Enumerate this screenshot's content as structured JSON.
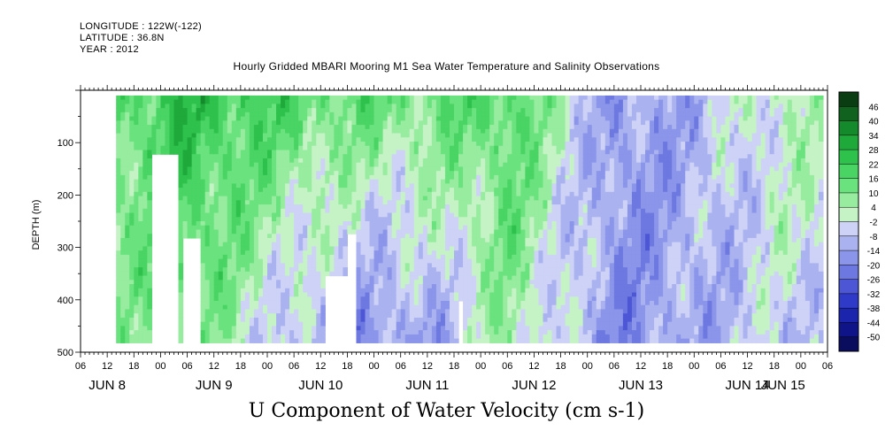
{
  "header": {
    "longitude": "LONGITUDE : 122W(-122)",
    "latitude": "LATITUDE : 36.8N",
    "year": "YEAR : 2012",
    "title": "Hourly Gridded MBARI Mooring M1 Sea Water Temperature and Salinity Observations"
  },
  "chart_data": {
    "type": "heatmap",
    "title": "Hourly Gridded MBARI Mooring M1 Sea Water Temperature and Salinity Observations",
    "variable_title": "U Component of Water Velocity (cm s-1)",
    "ylabel": "DEPTH (m)",
    "y_reversed": true,
    "ylim": [
      500,
      0
    ],
    "y_ticks": [
      100,
      200,
      300,
      400,
      500
    ],
    "x_hours": [
      "06",
      "12",
      "18",
      "00",
      "06",
      "12",
      "18",
      "00",
      "06",
      "12",
      "18",
      "00",
      "06",
      "12",
      "18",
      "00",
      "06",
      "12",
      "18",
      "00",
      "06",
      "12",
      "18",
      "00",
      "06",
      "12",
      "18",
      "00",
      "06"
    ],
    "x_days": [
      "JUN 8",
      "JUN 9",
      "JUN 10",
      "JUN 11",
      "JUN 12",
      "JUN 13",
      "JUN 14",
      "JUN 15"
    ],
    "x_range": [
      "2012-06-08 06:00",
      "2012-06-15 06:00"
    ],
    "data_range": {
      "x_start": "2012-06-08 14:00",
      "x_end": "2012-06-15 05:00",
      "depth_top": 10,
      "depth_bottom": 480
    },
    "colorbar": {
      "levels": [
        "46",
        "40",
        "34",
        "28",
        "22",
        "16",
        "10",
        "4",
        "-2",
        "-8",
        "-14",
        "-20",
        "-26",
        "-32",
        "-38",
        "-44",
        "-50"
      ],
      "colors": [
        "#0b3d12",
        "#11621f",
        "#158a2c",
        "#1ea93a",
        "#2ec14c",
        "#49d464",
        "#6ae27e",
        "#97ec9f",
        "#c5f3c6",
        "#cdd2f6",
        "#aab3f0",
        "#8b95ea",
        "#6d78e0",
        "#4d57d6",
        "#303ac8",
        "#1b24ad",
        "#0f1588",
        "#0a0d5e"
      ]
    },
    "approx_profile": [
      {
        "time": "2012-06-08 18:00",
        "upper": 18,
        "lower": 6,
        "note": "mixed"
      },
      {
        "time": "2012-06-09 06:00",
        "upper": 26,
        "lower": 12
      },
      {
        "time": "2012-06-10 00:00",
        "upper": 20,
        "lower": -4
      },
      {
        "time": "2012-06-10 18:00",
        "upper": 16,
        "lower": -18
      },
      {
        "time": "2012-06-11 12:00",
        "upper": 14,
        "lower": -14
      },
      {
        "time": "2012-06-12 06:00",
        "upper": 20,
        "lower": 6
      },
      {
        "time": "2012-06-13 06:00",
        "upper": -16,
        "lower": -18
      },
      {
        "time": "2012-06-14 00:00",
        "upper": -10,
        "lower": -12
      },
      {
        "time": "2012-06-14 18:00",
        "upper": 4,
        "lower": -6
      }
    ]
  }
}
